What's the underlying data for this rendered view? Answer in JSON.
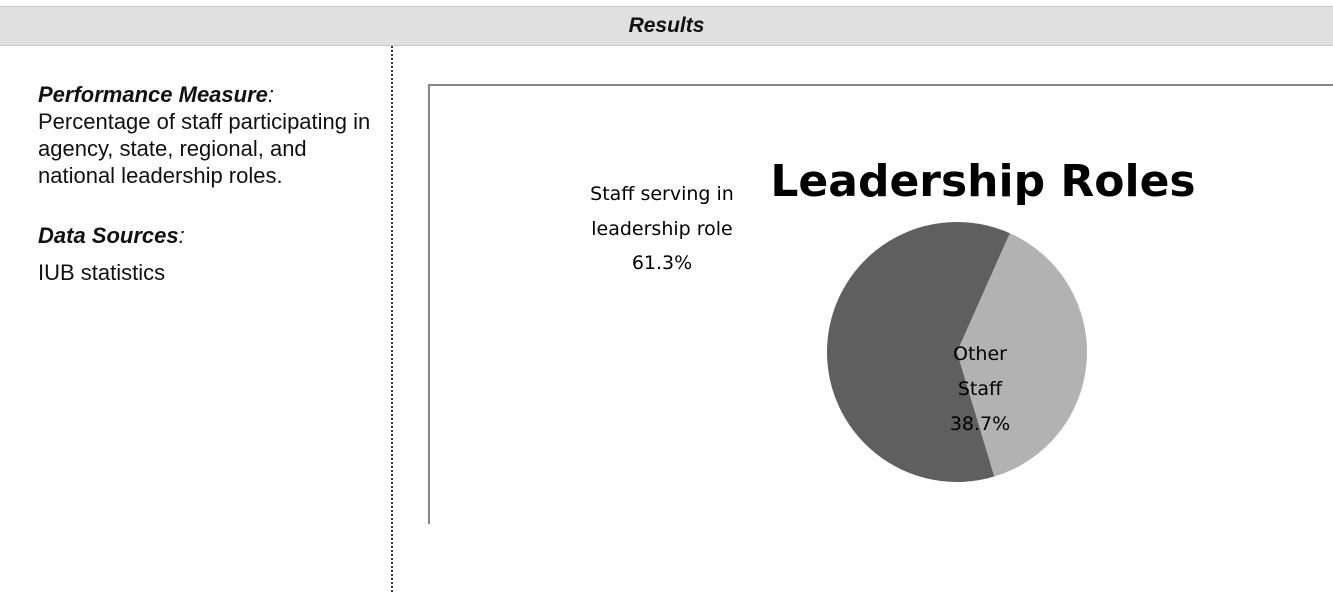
{
  "header": {
    "title": "Results"
  },
  "left_panel": {
    "performance_heading": "Performance Measure",
    "performance_colon": ":",
    "performance_text": "Percentage of staff participating in agency, state, regional, and national leadership roles.",
    "sources_heading": "Data Sources",
    "sources_colon": ":",
    "sources_text": "IUB statistics"
  },
  "chart_data": {
    "type": "pie",
    "title": "Leadership Roles",
    "categories": [
      "Staff serving in leadership role",
      "Other Staff"
    ],
    "values": [
      61.3,
      38.7
    ],
    "value_labels": [
      "61.3%",
      "38.7%"
    ],
    "colors": [
      "#5f5f5f",
      "#b2b2b2"
    ],
    "legend": "none"
  }
}
